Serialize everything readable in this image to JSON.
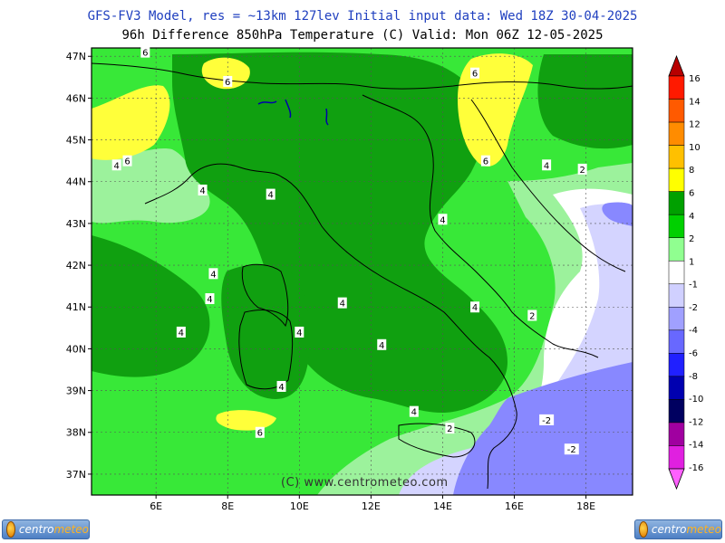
{
  "header": {
    "title_line1": "GFS-FV3 Model, res = ~13km 127lev   Initial input data: Wed 18Z 30-04-2025",
    "title_line2": "96h Difference 850hPa Temperature (C)  Valid: Mon 06Z 12-05-2025"
  },
  "map": {
    "lat_labels": [
      "47N",
      "46N",
      "45N",
      "44N",
      "43N",
      "42N",
      "41N",
      "40N",
      "39N",
      "38N",
      "37N"
    ],
    "lon_labels": [
      "6E",
      "8E",
      "10E",
      "12E",
      "14E",
      "16E",
      "18E"
    ],
    "lat_range": [
      36.5,
      47.2
    ],
    "lon_range": [
      4.2,
      19.3
    ],
    "contour_labels": [
      {
        "text": "6",
        "lon": 5.7,
        "lat": 47.1
      },
      {
        "text": "6",
        "lon": 8.0,
        "lat": 46.4
      },
      {
        "text": "6",
        "lon": 5.2,
        "lat": 44.5
      },
      {
        "text": "4",
        "lon": 4.9,
        "lat": 44.4
      },
      {
        "text": "4",
        "lon": 7.3,
        "lat": 43.8
      },
      {
        "text": "4",
        "lon": 9.2,
        "lat": 43.7
      },
      {
        "text": "6",
        "lon": 14.9,
        "lat": 46.6
      },
      {
        "text": "6",
        "lon": 15.2,
        "lat": 44.5
      },
      {
        "text": "4",
        "lon": 16.9,
        "lat": 44.4
      },
      {
        "text": "2",
        "lon": 17.9,
        "lat": 44.3
      },
      {
        "text": "4",
        "lon": 14.0,
        "lat": 43.1
      },
      {
        "text": "4",
        "lon": 7.6,
        "lat": 41.8
      },
      {
        "text": "4",
        "lon": 7.5,
        "lat": 41.2
      },
      {
        "text": "4",
        "lon": 11.2,
        "lat": 41.1
      },
      {
        "text": "4",
        "lon": 14.9,
        "lat": 41.0
      },
      {
        "text": "2",
        "lon": 16.5,
        "lat": 40.8
      },
      {
        "text": "4",
        "lon": 6.7,
        "lat": 40.4
      },
      {
        "text": "4",
        "lon": 10.0,
        "lat": 40.4
      },
      {
        "text": "4",
        "lon": 12.3,
        "lat": 40.1
      },
      {
        "text": "4",
        "lon": 9.5,
        "lat": 39.1
      },
      {
        "text": "4",
        "lon": 13.2,
        "lat": 38.5
      },
      {
        "text": "6",
        "lon": 8.9,
        "lat": 38.0
      },
      {
        "text": "2",
        "lon": 14.2,
        "lat": 38.1
      },
      {
        "text": "-2",
        "lon": 16.9,
        "lat": 38.3
      },
      {
        "text": "-2",
        "lon": 17.6,
        "lat": 37.6
      }
    ]
  },
  "colorbar": {
    "labels": [
      "16",
      "14",
      "12",
      "10",
      "8",
      "6",
      "4",
      "2",
      "1",
      "-1",
      "-2",
      "-4",
      "-6",
      "-8",
      "-10",
      "-12",
      "-14",
      "-16"
    ],
    "colors": [
      "#b80000",
      "#ff1a00",
      "#ff5a00",
      "#ff8c00",
      "#ffc000",
      "#ffff00",
      "#00a000",
      "#00d000",
      "#90ff90",
      "#ffffff",
      "#d0d0ff",
      "#a0a0ff",
      "#6868ff",
      "#2020ff",
      "#0000b0",
      "#000060",
      "#a000a0",
      "#e020e0",
      "#ff60ff"
    ]
  },
  "legend_colors": {
    "yellow": "#ffff3a",
    "dark_green": "#10a010",
    "bright_green": "#38e838",
    "light_green": "#9cf29c",
    "white": "#ffffff",
    "lavender": "#d4d4ff",
    "periwinkle": "#8888ff"
  },
  "footer": {
    "credit": "(C) www.centrometeo.com",
    "logo_word1": "centro",
    "logo_word2": "meteo"
  }
}
